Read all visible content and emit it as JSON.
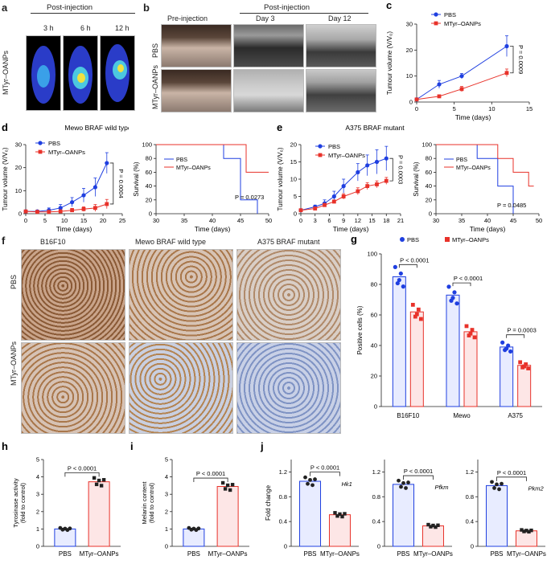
{
  "panels": {
    "a": {
      "letter": "a",
      "header": "Post-injection",
      "times": [
        "3 h",
        "6 h",
        "12 h"
      ],
      "row_label": "MTyr–OANPs"
    },
    "b": {
      "letter": "b",
      "header": "Post-injection",
      "cols": [
        "Pre-injection",
        "Day 3",
        "Day 12"
      ],
      "rows": [
        "PBS",
        "MTyr–OANPs"
      ]
    },
    "f": {
      "letter": "f",
      "cols": [
        "B16F10",
        "Mewo BRAF wild type",
        "A375 BRAF mutant"
      ],
      "rows": [
        "PBS",
        "MTyr–OANPs"
      ]
    }
  },
  "colors": {
    "pbs": "#1f3fe0",
    "mtyr": "#e8322a",
    "pbs_fill": "#e8ecff",
    "mtyr_fill": "#fde6e6",
    "photo_brown": "#a9774b",
    "photo_blue": "#8fa6cf"
  },
  "chart_data": [
    {
      "id": "c",
      "letter": "c",
      "type": "line",
      "xlabel": "Time (days)",
      "ylabel": "Tumour volume (V/V₀)",
      "xlim": [
        0,
        15
      ],
      "ylim": [
        0,
        30
      ],
      "xticks": [
        0,
        5,
        10,
        15
      ],
      "yticks": [
        0,
        10,
        20,
        30
      ],
      "x": [
        0,
        3,
        6,
        12
      ],
      "series": [
        {
          "name": "PBS",
          "color": "#1f3fe0",
          "marker": "circle",
          "values": [
            1,
            6.8,
            10,
            21.5
          ],
          "err": [
            0.3,
            1.5,
            1,
            4
          ]
        },
        {
          "name": "MTyr–OANPs",
          "color": "#e8322a",
          "marker": "square",
          "values": [
            1,
            2.2,
            5,
            11.2
          ],
          "err": [
            0.3,
            0.5,
            1,
            1.5
          ]
        }
      ],
      "annotation": "P = 0.0009"
    },
    {
      "id": "d",
      "letter": "d",
      "type": "line",
      "title": "Mewo BRAF wild type",
      "xlabel": "Time (days)",
      "ylabel": "Tumour volume (V/V₀)",
      "xlim": [
        0,
        25
      ],
      "ylim": [
        0,
        30
      ],
      "xticks": [
        0,
        5,
        10,
        15,
        20,
        25
      ],
      "yticks": [
        0,
        10,
        20,
        30
      ],
      "x": [
        0,
        3,
        6,
        9,
        12,
        15,
        18,
        21
      ],
      "series": [
        {
          "name": "PBS",
          "color": "#1f3fe0",
          "marker": "circle",
          "values": [
            1,
            1,
            1.5,
            2.5,
            5,
            8,
            11.5,
            22
          ],
          "err": [
            0.3,
            0.5,
            1,
            1.5,
            2,
            3,
            4,
            4.5
          ]
        },
        {
          "name": "MTyr–OANPs",
          "color": "#e8322a",
          "marker": "square",
          "values": [
            1,
            0.8,
            0.8,
            1,
            1.5,
            2,
            2.5,
            4.2
          ],
          "err": [
            0.2,
            0.3,
            0.5,
            0.5,
            0.8,
            1,
            1.5,
            2
          ]
        }
      ],
      "annotation": "P = 0.0004"
    },
    {
      "id": "d2",
      "type": "survival",
      "ylabel": "Survival (%)",
      "xlabel": "Time (days)",
      "xlim": [
        30,
        50
      ],
      "ylim": [
        0,
        100
      ],
      "xticks": [
        30,
        35,
        40,
        45,
        50
      ],
      "yticks": [
        0,
        20,
        40,
        60,
        80,
        100
      ],
      "series": [
        {
          "name": "PBS",
          "color": "#1f3fe0",
          "steps": [
            [
              30,
              100
            ],
            [
              42,
              100
            ],
            [
              42,
              80
            ],
            [
              45,
              80
            ],
            [
              45,
              20
            ],
            [
              48,
              20
            ],
            [
              48,
              0
            ]
          ]
        },
        {
          "name": "MTyr–OANPs",
          "color": "#e8322a",
          "steps": [
            [
              30,
              100
            ],
            [
              46,
              100
            ],
            [
              46,
              60
            ],
            [
              50,
              60
            ]
          ]
        }
      ],
      "annotation": "P = 0.0273"
    },
    {
      "id": "e",
      "letter": "e",
      "type": "line",
      "title": "A375 BRAF mutant",
      "xlabel": "Time (days)",
      "ylabel": "Tumour volume (V/V₀)",
      "xlim": [
        0,
        21
      ],
      "ylim": [
        0,
        20
      ],
      "xticks": [
        0,
        3,
        6,
        9,
        12,
        15,
        18,
        21
      ],
      "yticks": [
        0,
        5,
        10,
        15,
        20
      ],
      "x": [
        0,
        3,
        5,
        7,
        9,
        12,
        14,
        16,
        18
      ],
      "series": [
        {
          "name": "PBS",
          "color": "#1f3fe0",
          "marker": "circle",
          "values": [
            1,
            2,
            3,
            5,
            8,
            12,
            14,
            15,
            16
          ],
          "err": [
            0.3,
            0.5,
            1,
            1.5,
            2,
            2.5,
            3,
            3.5,
            3.5
          ]
        },
        {
          "name": "MTyr–OANPs",
          "color": "#e8322a",
          "marker": "square",
          "values": [
            1,
            1.5,
            2.5,
            3.5,
            5,
            6.5,
            8,
            8.5,
            9.5
          ],
          "err": [
            0.2,
            0.3,
            0.5,
            0.5,
            0.8,
            1,
            1,
            1,
            1
          ]
        }
      ],
      "annotation": "P = 0.0003"
    },
    {
      "id": "e2",
      "type": "survival",
      "ylabel": "Survival (%)",
      "xlabel": "Time (days)",
      "xlim": [
        30,
        50
      ],
      "ylim": [
        0,
        100
      ],
      "xticks": [
        30,
        35,
        40,
        45,
        50
      ],
      "yticks": [
        0,
        20,
        40,
        60,
        80,
        100
      ],
      "series": [
        {
          "name": "PBS",
          "color": "#1f3fe0",
          "steps": [
            [
              30,
              100
            ],
            [
              38,
              100
            ],
            [
              38,
              80
            ],
            [
              42,
              80
            ],
            [
              42,
              40
            ],
            [
              45,
              40
            ],
            [
              45,
              0
            ]
          ]
        },
        {
          "name": "MTyr–OANPs",
          "color": "#e8322a",
          "steps": [
            [
              30,
              100
            ],
            [
              42,
              100
            ],
            [
              42,
              80
            ],
            [
              45,
              80
            ],
            [
              45,
              60
            ],
            [
              48,
              60
            ],
            [
              48,
              40
            ],
            [
              49,
              40
            ]
          ]
        }
      ],
      "annotation": "P = 0.0485"
    },
    {
      "id": "g",
      "letter": "g",
      "type": "bar",
      "ylabel": "Positive cells (%)",
      "categories": [
        "B16F10",
        "Mewo",
        "A375"
      ],
      "ylim": [
        0,
        100
      ],
      "yticks": [
        0,
        20,
        40,
        60,
        80,
        100
      ],
      "series": [
        {
          "name": "PBS",
          "color": "#1f3fe0",
          "values": [
            85,
            73,
            39
          ]
        },
        {
          "name": "MTyr–OANPs",
          "color": "#e8322a",
          "values": [
            62,
            49,
            27
          ]
        }
      ],
      "annotations": [
        "P < 0.0001",
        "P < 0.0001",
        "P = 0.0003"
      ]
    },
    {
      "id": "h",
      "letter": "h",
      "type": "bar",
      "ylabel": "Tyrosinase activity (fold to control)",
      "categories": [
        "PBS",
        "MTyr–OANPs"
      ],
      "ylim": [
        0,
        5
      ],
      "yticks": [
        0,
        1,
        2,
        3,
        4,
        5
      ],
      "values": [
        1.0,
        3.72
      ],
      "annotation": "P < 0.0001"
    },
    {
      "id": "i",
      "letter": "i",
      "type": "bar",
      "ylabel": "Melanin content (fold to control)",
      "categories": [
        "PBS",
        "MTyr–OANPs"
      ],
      "ylim": [
        0,
        5
      ],
      "yticks": [
        0,
        1,
        2,
        3,
        4,
        5
      ],
      "values": [
        1.0,
        3.45
      ],
      "annotation": "P < 0.0001"
    },
    {
      "id": "j1",
      "letter": "j",
      "type": "bar",
      "ylabel": "Fold change",
      "gene": "Hk1",
      "categories": [
        "PBS",
        "MTyr–OANPs"
      ],
      "ylim": [
        0,
        1.4
      ],
      "yticks": [
        0,
        0.4,
        0.8,
        1.2
      ],
      "values": [
        1.05,
        0.51
      ],
      "annotation": "P < 0.0001"
    },
    {
      "id": "j2",
      "type": "bar",
      "gene": "Pfkm",
      "categories": [
        "PBS",
        "MTyr–OANPs"
      ],
      "ylim": [
        0,
        1.4
      ],
      "yticks": [
        0,
        0.4,
        0.8,
        1.2
      ],
      "values": [
        1.0,
        0.33
      ],
      "annotation": "P < 0.0001"
    },
    {
      "id": "j3",
      "type": "bar",
      "gene": "Pkm2",
      "categories": [
        "PBS",
        "MTyr–OANPs"
      ],
      "ylim": [
        0,
        1.4
      ],
      "yticks": [
        0,
        0.4,
        0.8,
        1.2
      ],
      "values": [
        0.98,
        0.25
      ],
      "annotation": "P < 0.0001"
    }
  ]
}
